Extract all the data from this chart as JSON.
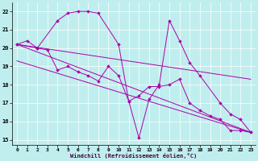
{
  "xlabel": "Windchill (Refroidissement éolien,°C)",
  "xlim_min": -0.5,
  "xlim_max": 23.5,
  "ylim_min": 14.7,
  "ylim_max": 22.5,
  "xticks": [
    0,
    1,
    2,
    3,
    4,
    5,
    6,
    7,
    8,
    9,
    10,
    11,
    12,
    13,
    14,
    15,
    16,
    17,
    18,
    19,
    20,
    21,
    22,
    23
  ],
  "yticks": [
    15,
    16,
    17,
    18,
    19,
    20,
    21,
    22
  ],
  "bg_color": "#c0eeee",
  "line_color": "#aa00aa",
  "lw": 0.7,
  "ms": 2.0,
  "series1_x": [
    0,
    1,
    2,
    3,
    4,
    5,
    6,
    7,
    8,
    9,
    10,
    11,
    12,
    13,
    14,
    15,
    16,
    17,
    18,
    19,
    20,
    21,
    22,
    23
  ],
  "series1_y": [
    20.2,
    20.4,
    20.0,
    19.9,
    18.8,
    19.0,
    18.7,
    18.5,
    18.2,
    19.0,
    18.5,
    17.1,
    17.4,
    17.9,
    17.9,
    18.0,
    18.3,
    17.0,
    16.6,
    16.3,
    16.1,
    15.5,
    15.5,
    15.4
  ],
  "series2_x": [
    0,
    2,
    4,
    5,
    6,
    7,
    8,
    10,
    11,
    12,
    13,
    14,
    15,
    16,
    17,
    18,
    20,
    21,
    22,
    23
  ],
  "series2_y": [
    20.2,
    20.0,
    21.5,
    21.9,
    22.0,
    22.0,
    21.9,
    20.2,
    17.1,
    15.1,
    17.2,
    18.0,
    21.5,
    20.4,
    19.2,
    18.5,
    17.0,
    16.4,
    16.1,
    15.4
  ],
  "trend1_x": [
    0,
    23
  ],
  "trend1_y": [
    20.2,
    18.3
  ],
  "trend2_x": [
    0,
    23
  ],
  "trend2_y": [
    19.3,
    15.4
  ],
  "trend3_x": [
    0,
    23
  ],
  "trend3_y": [
    20.2,
    15.4
  ]
}
